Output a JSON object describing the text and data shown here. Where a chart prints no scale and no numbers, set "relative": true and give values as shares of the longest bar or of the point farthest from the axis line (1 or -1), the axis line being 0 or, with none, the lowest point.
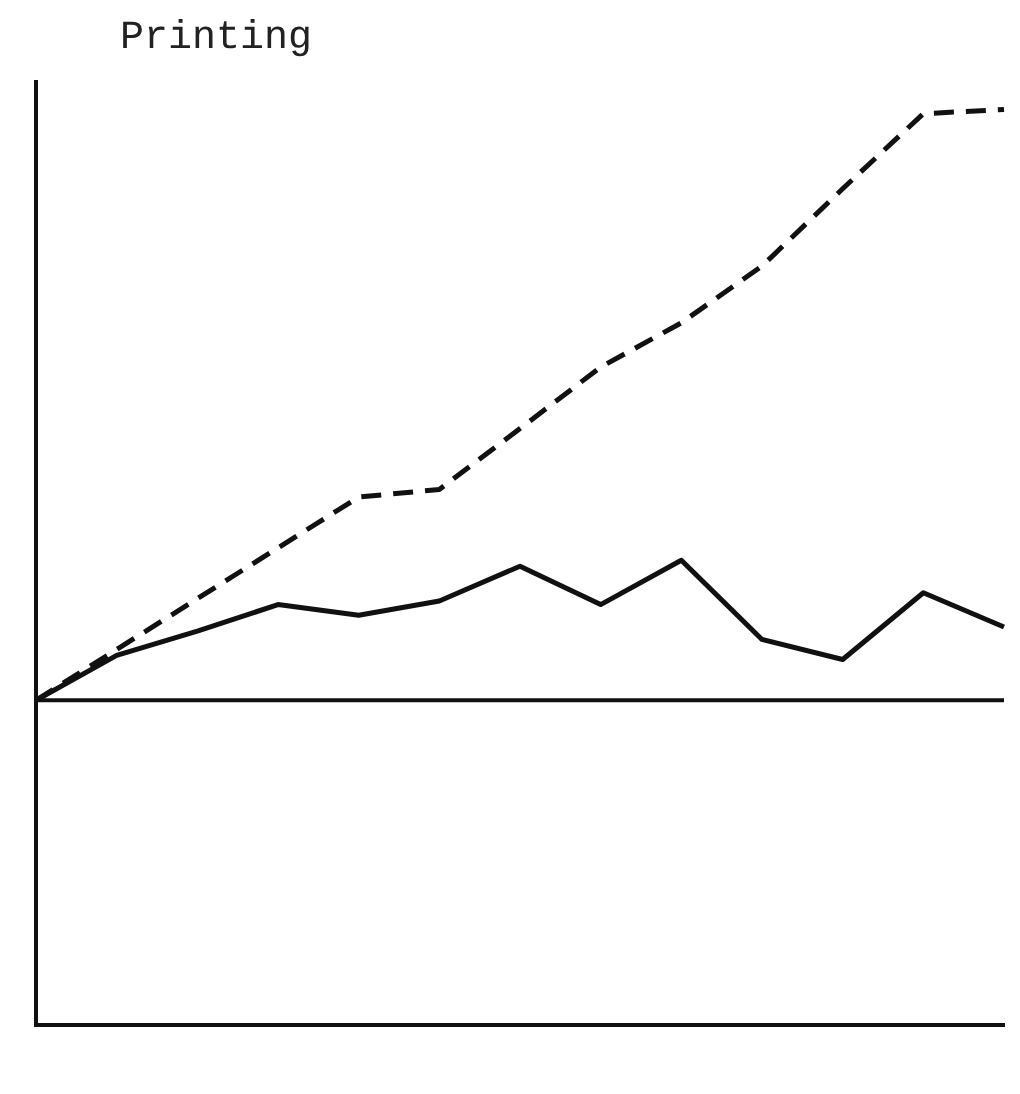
{
  "chart_data": {
    "type": "line",
    "title": "Printing",
    "relative": true,
    "grid": false,
    "legend": false,
    "marker": "none",
    "categories": [
      null,
      null,
      null,
      null,
      null,
      null,
      null,
      null,
      null,
      null,
      null,
      null,
      null
    ],
    "series": [
      {
        "color": "#111111",
        "line_style": "dashed",
        "values": [
          0,
          0.086,
          0.172,
          0.258,
          0.344,
          0.357,
          0.46,
          0.564,
          0.639,
          0.735,
          0.866,
          0.993,
          1
        ]
      },
      {
        "color": "#111111",
        "line_style": "solid",
        "values": [
          0,
          0.076,
          0.117,
          0.162,
          0.144,
          0.168,
          0.227,
          0.162,
          0.237,
          0.103,
          0.069,
          0.182,
          0.124
        ]
      }
    ]
  }
}
